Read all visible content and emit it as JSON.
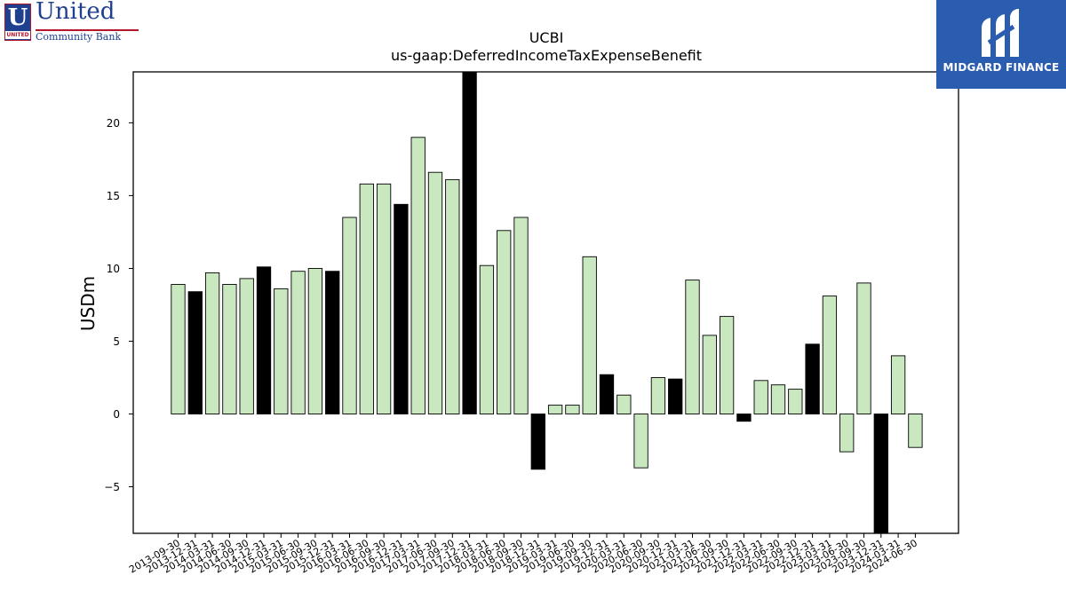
{
  "logos": {
    "left": {
      "symbol": "U",
      "tag": "UNITED",
      "name": "United",
      "subname": "Community Bank",
      "colors": {
        "primary": "#1f3f8f",
        "accent": "#b5162b"
      }
    },
    "right": {
      "text": "MIDGARD FINANCE",
      "background": "#2a5cb0"
    }
  },
  "chart_data": {
    "type": "bar",
    "title": "UCBI",
    "subtitle": "us-gaap:DeferredIncomeTaxExpenseBenefit",
    "xlabel": "",
    "ylabel": "USDm",
    "ylim": [
      -8.2,
      23.5
    ],
    "yticks": [
      -5,
      0,
      5,
      10,
      15,
      20
    ],
    "ytick_labels": [
      "−5",
      "0",
      "5",
      "10",
      "15",
      "20"
    ],
    "grid": false,
    "colors": {
      "quarter": "#c9e8c0",
      "year_end": "#000000",
      "edge": "#000000"
    },
    "categories": [
      "2013-09-30",
      "2013-12-31",
      "2014-03-31",
      "2014-06-30",
      "2014-09-30",
      "2014-12-31",
      "2015-03-31",
      "2015-06-30",
      "2015-09-30",
      "2015-12-31",
      "2016-03-31",
      "2016-06-30",
      "2016-09-30",
      "2016-12-31",
      "2017-03-31",
      "2017-06-30",
      "2017-09-30",
      "2017-12-31",
      "2018-03-31",
      "2018-06-30",
      "2018-09-30",
      "2018-12-31",
      "2019-03-31",
      "2019-06-30",
      "2019-09-30",
      "2019-12-31",
      "2020-03-31",
      "2020-06-30",
      "2020-09-30",
      "2020-12-31",
      "2021-03-31",
      "2021-06-30",
      "2021-09-30",
      "2021-12-31",
      "2022-03-31",
      "2022-06-30",
      "2022-09-30",
      "2022-12-31",
      "2023-03-31",
      "2023-06-30",
      "2023-09-30",
      "2023-12-31",
      "2024-03-31",
      "2024-06-30"
    ],
    "values": [
      8.9,
      8.4,
      9.7,
      8.9,
      9.3,
      10.1,
      8.6,
      9.8,
      10.0,
      9.8,
      13.5,
      15.8,
      15.8,
      14.4,
      19.0,
      16.6,
      16.1,
      24.0,
      10.2,
      12.6,
      13.5,
      -3.8,
      0.6,
      0.6,
      10.8,
      2.7,
      1.3,
      -3.7,
      2.5,
      2.4,
      9.2,
      5.4,
      6.7,
      -0.5,
      2.3,
      2.0,
      1.7,
      4.8,
      8.1,
      -2.6,
      9.0,
      -9.0,
      4.0,
      -2.3
    ]
  }
}
